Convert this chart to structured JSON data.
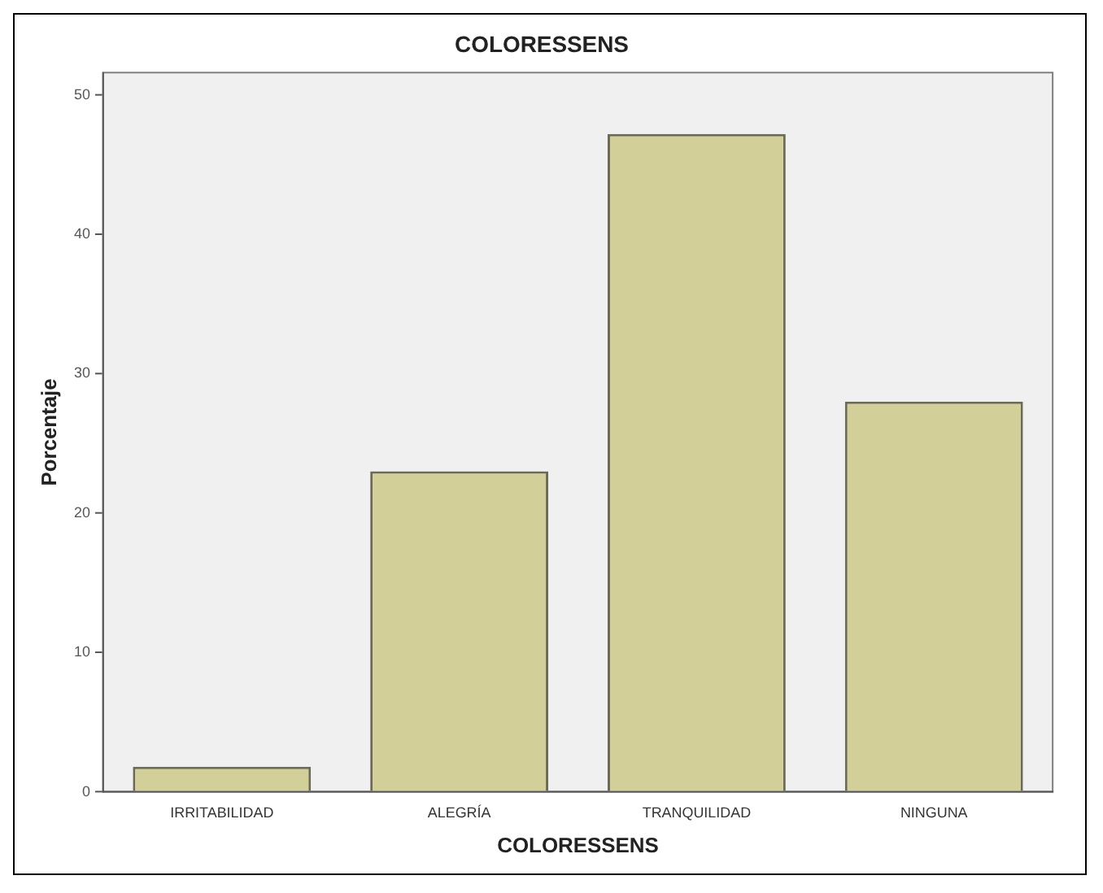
{
  "chart_data": {
    "type": "bar",
    "title": "COLORESSENS",
    "xlabel": "COLORESSENS",
    "ylabel": "Porcentaje",
    "categories": [
      "IRRITABILIDAD",
      "ALEGRÍA",
      "TRANQUILIDAD",
      "NINGUNA"
    ],
    "values": [
      1.8,
      23.0,
      47.2,
      28.0
    ],
    "color": "#d3cf98",
    "ylim": [
      0,
      51.6
    ],
    "yticks": [
      0,
      10,
      20,
      30,
      40,
      50
    ],
    "grid": false,
    "legend": false
  }
}
